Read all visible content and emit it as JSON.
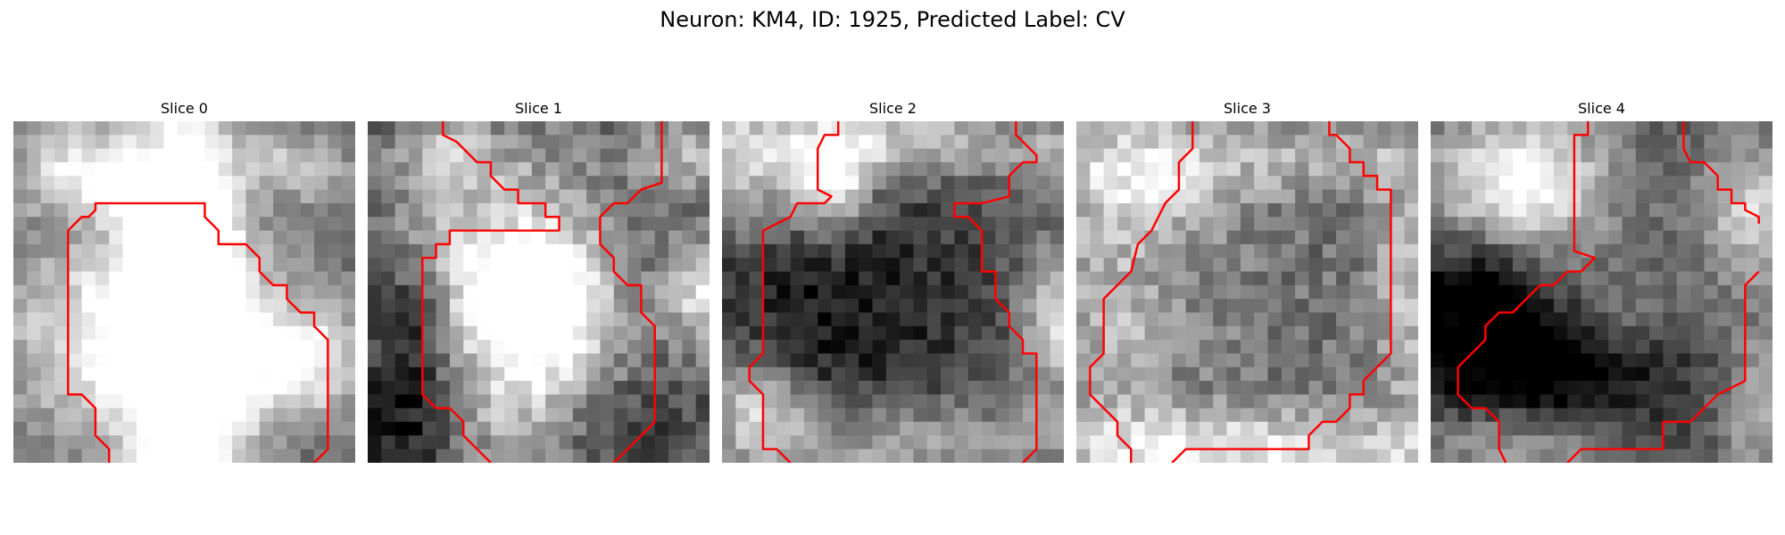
{
  "figure": {
    "title": "Neuron: KM4, ID: 1925, Predicted Label: CV",
    "colormap": "gray",
    "outline_color": "#ff0000"
  },
  "slices": [
    {
      "title": "Slice 0"
    },
    {
      "title": "Slice 1"
    },
    {
      "title": "Slice 2"
    },
    {
      "title": "Slice 3"
    },
    {
      "title": "Slice 4"
    }
  ]
}
